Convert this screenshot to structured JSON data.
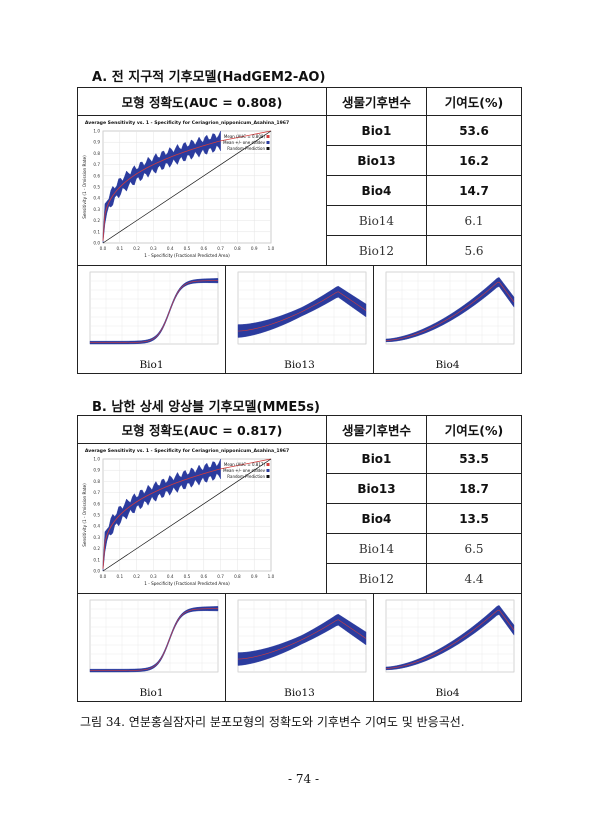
{
  "sections": [
    {
      "title": "A. 전 지구적 기후모델(HadGEM2-AO)",
      "header": {
        "model": "모형 정확도(AUC = 0.808)",
        "var": "생물기후변수",
        "contrib": "기여도(%)"
      },
      "roc": {
        "title": "Average Sensitivity vs. 1 - Specificity for Ceriagrion_nipponicum_Asahina_1967",
        "legend": [
          "Mean (AUC = 0.808)",
          "Mean +/- one stddev",
          "Random Prediction"
        ],
        "xlabel": "1 - Specificity (Fractional Predicted Area)",
        "ylabel": "Sensitivity (1 - Omission Rate)"
      },
      "rows": [
        {
          "var": "Bio1",
          "value": "53.6"
        },
        {
          "var": "Bio13",
          "value": "16.2"
        },
        {
          "var": "Bio4",
          "value": "14.7"
        },
        {
          "var": "Bio14",
          "value": "6.1"
        },
        {
          "var": "Bio12",
          "value": "5.6"
        }
      ],
      "responses": [
        "Bio1",
        "Bio13",
        "Bio4"
      ]
    },
    {
      "title": "B. 남한 상세 앙상블 기후모델(MME5s)",
      "header": {
        "model": "모형 정확도(AUC = 0.817)",
        "var": "생물기후변수",
        "contrib": "기여도(%)"
      },
      "roc": {
        "title": "Average Sensitivity vs. 1 - Specificity for Ceriagrion_nipponicum_Asahina_1967",
        "legend": [
          "Mean (AUC = 0.817)",
          "Mean +/- one stddev",
          "Random Prediction"
        ],
        "xlabel": "1 - Specificity (Fractional Predicted Area)",
        "ylabel": "Sensitivity (1 - Omission Rate)"
      },
      "rows": [
        {
          "var": "Bio1",
          "value": "53.5"
        },
        {
          "var": "Bio13",
          "value": "18.7"
        },
        {
          "var": "Bio4",
          "value": "13.5"
        },
        {
          "var": "Bio14",
          "value": "6.5"
        },
        {
          "var": "Bio12",
          "value": "4.4"
        }
      ],
      "responses": [
        "Bio1",
        "Bio13",
        "Bio4"
      ]
    }
  ],
  "caption": "그림 34. 연분홍실잠자리 분포모형의 정확도와 기후변수 기여도 및 반응곡선.",
  "page_number": "- 74 -",
  "colors": {
    "band": "#2b3b9e",
    "mean": "#d23c3c",
    "random": "#111111"
  }
}
